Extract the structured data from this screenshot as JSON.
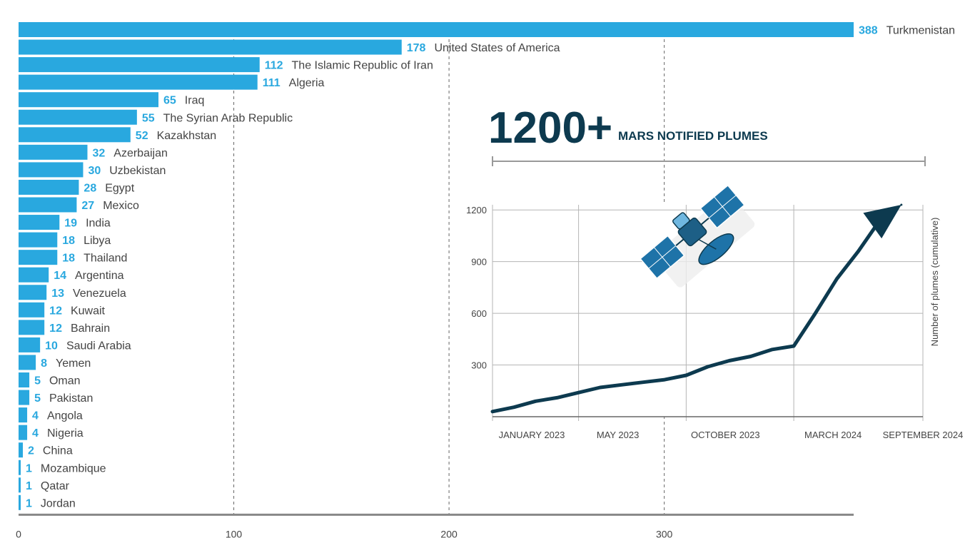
{
  "colors": {
    "bar": "#29a8df",
    "value_text": "#29a8df",
    "name_text": "#444444",
    "grid": "#666666",
    "axis": "#888888",
    "dark": "#0d3a4f",
    "inset_grid": "#b5b5b5",
    "satellite_blue": "#1e73a8"
  },
  "icons": [
    "satellite-icon"
  ],
  "chart_data": [
    {
      "type": "bar",
      "orientation": "horizontal",
      "categories": [
        "Turkmenistan",
        "United States of America",
        "The Islamic Republic of Iran",
        "Algeria",
        "Iraq",
        "The Syrian Arab Republic",
        "Kazakhstan",
        "Azerbaijan",
        "Uzbekistan",
        "Egypt",
        "Mexico",
        "India",
        "Libya",
        "Thailand",
        "Argentina",
        "Venezuela",
        "Kuwait",
        "Bahrain",
        "Saudi Arabia",
        "Yemen",
        "Oman",
        "Pakistan",
        "Angola",
        "Nigeria",
        "China",
        "Mozambique",
        "Qatar",
        "Jordan"
      ],
      "values": [
        388,
        178,
        112,
        111,
        65,
        55,
        52,
        32,
        30,
        28,
        27,
        19,
        18,
        18,
        14,
        13,
        12,
        12,
        10,
        8,
        5,
        5,
        4,
        4,
        2,
        1,
        1,
        1
      ],
      "xlim": [
        0,
        388
      ],
      "xticks": [
        "0",
        "100",
        "200",
        "300"
      ],
      "grid": "vertical dashed"
    },
    {
      "type": "line",
      "headline_number": "1200+",
      "headline_label": "MARS NOTIFIED PLUMES",
      "ylabel": "Number of plumes (cumulative)",
      "yticks": [
        "1200",
        "900",
        "600",
        "300"
      ],
      "ylim": [
        0,
        1230
      ],
      "xticks": [
        "JANUARY 2023",
        "MAY 2023",
        "OCTOBER 2023",
        "MARCH 2024",
        "SEPTEMBER 2024"
      ],
      "x": [
        "2023-01",
        "2023-02",
        "2023-03",
        "2023-04",
        "2023-05",
        "2023-06",
        "2023-07",
        "2023-08",
        "2023-09",
        "2023-10",
        "2023-11",
        "2023-12",
        "2024-01",
        "2024-02",
        "2024-03",
        "2024-04",
        "2024-05",
        "2024-06",
        "2024-07",
        "2024-08"
      ],
      "y": [
        30,
        55,
        90,
        110,
        140,
        170,
        185,
        200,
        215,
        240,
        290,
        325,
        350,
        390,
        410,
        600,
        800,
        960,
        1140,
        1230
      ],
      "legend": "none",
      "grid": true
    }
  ]
}
